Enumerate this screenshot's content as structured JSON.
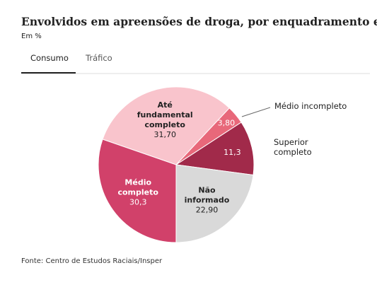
{
  "chart_data": {
    "type": "pie",
    "title": "Envolvidos em apreensões de droga, por enquadramento e escolaridade",
    "subtitle": "Em %",
    "tabs": [
      "Consumo",
      "Tráfico"
    ],
    "categories": [
      "Até fundamental completo",
      "Médio incompleto",
      "Superior completo",
      "Não informado",
      "Médio completo"
    ],
    "values": [
      31.7,
      3.8,
      11.3,
      22.9,
      30.3
    ],
    "value_labels": [
      "31,70",
      "3,80",
      "11,3",
      "22,90",
      "30,3"
    ],
    "colors": [
      "#f9c4cc",
      "#e8687a",
      "#a12a4a",
      "#d9d9d9",
      "#d1416a"
    ],
    "source": "Fonte: Centro de Estudos Raciais/Insper"
  }
}
